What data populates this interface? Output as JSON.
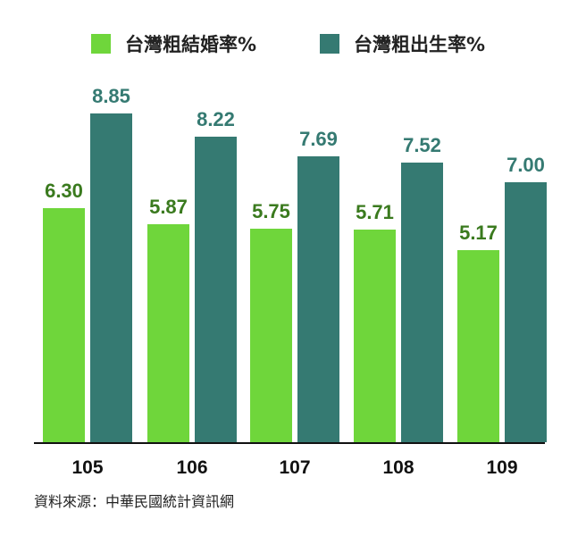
{
  "chart_data": {
    "type": "bar",
    "title": "",
    "categories": [
      "105",
      "106",
      "107",
      "108",
      "109"
    ],
    "series": [
      {
        "name": "台灣粗結婚率%",
        "color": "#6fd63b",
        "label_color": "#3a7a1e",
        "values": [
          6.3,
          5.87,
          5.75,
          5.71,
          5.17
        ]
      },
      {
        "name": "台灣粗出生率%",
        "color": "#357a72",
        "label_color": "#357a72",
        "values": [
          8.85,
          8.22,
          7.69,
          7.52,
          7.0
        ]
      }
    ],
    "xlabel": "",
    "ylabel": "",
    "ylim": [
      0,
      10
    ],
    "grid": false,
    "legend_position": "top",
    "source": "資料來源：中華民國統計資訊網"
  },
  "legend": {
    "items": [
      {
        "label": "台灣粗結婚率%",
        "color": "#6fd63b"
      },
      {
        "label": "台灣粗出生率%",
        "color": "#357a72"
      }
    ]
  },
  "labels": {
    "v0": [
      "6.30",
      "5.87",
      "5.75",
      "5.71",
      "5.17"
    ],
    "v1": [
      "8.85",
      "8.22",
      "7.69",
      "7.52",
      "7.00"
    ],
    "x": [
      "105",
      "106",
      "107",
      "108",
      "109"
    ]
  },
  "source": "資料來源：中華民國統計資訊網"
}
